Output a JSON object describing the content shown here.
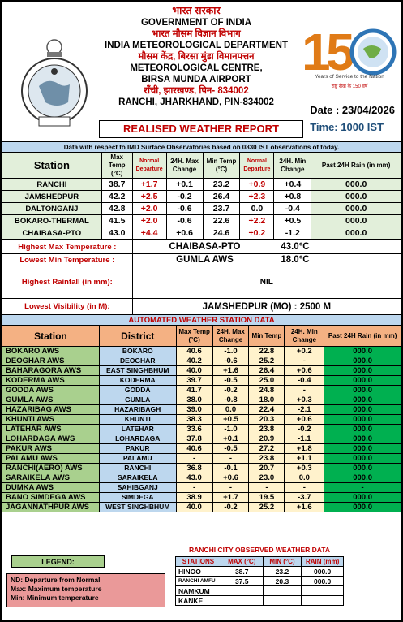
{
  "header": {
    "line1_hindi": "भारत सरकार",
    "line2": "GOVERNMENT OF INDIA",
    "line3_hindi": "भारत मौसम विज्ञान विभाग",
    "line4": "INDIA METEOROLOGICAL DEPARTMENT",
    "line5_hindi": "मौसम केंद्र, बिरसा मुंडा विमानपत्तन",
    "line6": "METEOROLOGICAL CENTRE,",
    "line7": "BIRSA MUNDA AIRPORT",
    "line8_hindi": "राँची, झारखण्ड, पिन- 834002",
    "line9": "RANCHI, JHARKHAND, PIN-834002",
    "date": "Date : 23/04/2026",
    "time": "Time: 1000 IST",
    "report_title": "REALISED WEATHER REPORT",
    "logo150_text": "150",
    "logo150_sub": "Years of Service to the Nation",
    "emblem_text": "भारत मौसम विज्ञान विभाग"
  },
  "note": "Data with respect to IMD Surface Observatories based on 0830 IST observations of today.",
  "table1": {
    "headers": [
      "Station",
      "Max Temp (°C)",
      "Normal Departure",
      "24H. Max Change",
      "Min Temp (°C)",
      "Normal Departure",
      "24H. Min Change",
      "Past 24H Rain (in mm)"
    ],
    "rows": [
      [
        "RANCHI",
        "38.7",
        "+1.7",
        "+0.1",
        "23.2",
        "+0.9",
        "+0.4",
        "000.0"
      ],
      [
        "JAMSHEDPUR",
        "42.2",
        "+2.5",
        "-0.2",
        "26.4",
        "+2.3",
        "+0.8",
        "000.0"
      ],
      [
        "DALTONGANJ",
        "42.8",
        "+2.0",
        "-0.6",
        "23.7",
        "0.0",
        "-0.4",
        "000.0"
      ],
      [
        "BOKARO-THERMAL",
        "41.5",
        "+2.0",
        "-0.6",
        "22.6",
        "+2.2",
        "+0.5",
        "000.0"
      ],
      [
        "CHAIBASA-PTO",
        "43.0",
        "+4.4",
        "+0.6",
        "24.6",
        "+0.2",
        "-1.2",
        "000.0"
      ]
    ]
  },
  "summary": {
    "max_label": "Highest Max Temperature :",
    "max_station": "CHAIBASA-PTO",
    "max_value": "43.0°C",
    "min_label": "Lowest Min Temperature :",
    "min_station": "GUMLA AWS",
    "min_value": "18.0°C",
    "rain_label": "Highest Rainfall (in mm):",
    "rain_value": "NIL",
    "vis_label": "Lowest Visibility (in M):",
    "vis_value": "JAMSHEDPUR (MO) : 2500 M"
  },
  "aws": {
    "title": "AUTOMATED WEATHER STATION DATA",
    "headers": [
      "Station",
      "District",
      "Max Temp (°C)",
      "24H. Max Change",
      "Min Temp",
      "24H. Min Change",
      "Past 24H Rain (in mm)"
    ],
    "rows": [
      [
        "BOKARO AWS",
        "BOKARO",
        "40.6",
        "-1.0",
        "22.8",
        "+0.2",
        "000.0"
      ],
      [
        "DEOGHAR AWS",
        "DEOGHAR",
        "40.2",
        "-0.6",
        "25.2",
        "-",
        "000.0"
      ],
      [
        "BAHARAGORA AWS",
        "EAST SINGHBHUM",
        "40.0",
        "+1.6",
        "26.4",
        "+0.6",
        "000.0"
      ],
      [
        "KODERMA AWS",
        "KODERMA",
        "39.7",
        "-0.5",
        "25.0",
        "-0.4",
        "000.0"
      ],
      [
        "GODDA AWS",
        "GODDA",
        "41.7",
        "-0.2",
        "24.8",
        "-",
        "000.0"
      ],
      [
        "GUMLA AWS",
        "GUMLA",
        "38.0",
        "-0.8",
        "18.0",
        "+0.3",
        "000.0"
      ],
      [
        "HAZARIBAG AWS",
        "HAZARIBAGH",
        "39.0",
        "0.0",
        "22.4",
        "-2.1",
        "000.0"
      ],
      [
        "KHUNTI AWS",
        "KHUNTI",
        "38.3",
        "+0.5",
        "20.3",
        "+0.6",
        "000.0"
      ],
      [
        "LATEHAR AWS",
        "LATEHAR",
        "33.6",
        "-1.0",
        "23.8",
        "-0.2",
        "000.0"
      ],
      [
        "LOHARDAGA AWS",
        "LOHARDAGA",
        "37.8",
        "+0.1",
        "20.9",
        "-1.1",
        "000.0"
      ],
      [
        "PAKUR AWS",
        "PAKUR",
        "40.6",
        "-0.5",
        "27.2",
        "+1.8",
        "000.0"
      ],
      [
        "PALAMU AWS",
        "PALAMU",
        "-",
        "-",
        "23.8",
        "+1.1",
        "000.0"
      ],
      [
        "RANCHI(AERO) AWS",
        "RANCHI",
        "36.8",
        "-0.1",
        "20.7",
        "+0.3",
        "000.0"
      ],
      [
        "SARAIKELA AWS",
        "SARAIKELA",
        "43.0",
        "+0.6",
        "23.0",
        "0.0",
        "000.0"
      ],
      [
        "DUMKA AWS",
        "SAHIBGANJ",
        "-",
        "-",
        "-",
        "-",
        "-"
      ],
      [
        "BANO SIMDEGA AWS",
        "SIMDEGA",
        "38.9",
        "+1.7",
        "19.5",
        "-3.7",
        "000.0"
      ],
      [
        "JAGANNATHPUR AWS",
        "WEST SINGHBHUM",
        "40.0",
        "-0.2",
        "25.2",
        "+1.6",
        "000.0"
      ]
    ]
  },
  "legend": {
    "title": "LEGEND:",
    "line1": "ND: Departure from Normal",
    "line2": "Max: Maximum temperature",
    "line3": "Min: Minimum temperature"
  },
  "ranchi_city": {
    "title": "RANCHI CITY OBSERVED WEATHER DATA",
    "headers": [
      "STATIONS",
      "MAX (°C)",
      "MIN (°C)",
      "RAIN (mm)"
    ],
    "rows": [
      [
        "HINOO",
        "38.7",
        "23.2",
        "000.0"
      ],
      [
        "RANCHI AMFU",
        "37.5",
        "20.3",
        "000.0"
      ],
      [
        "NAMKUM",
        "",
        "",
        ""
      ],
      [
        "KANKE",
        "",
        "",
        ""
      ]
    ]
  },
  "colors": {
    "accent_red": "#c00000",
    "header_blue": "#bdd7ee",
    "green": "#00b050",
    "light_green": "#a9d08e",
    "orange": "#f4b183"
  }
}
